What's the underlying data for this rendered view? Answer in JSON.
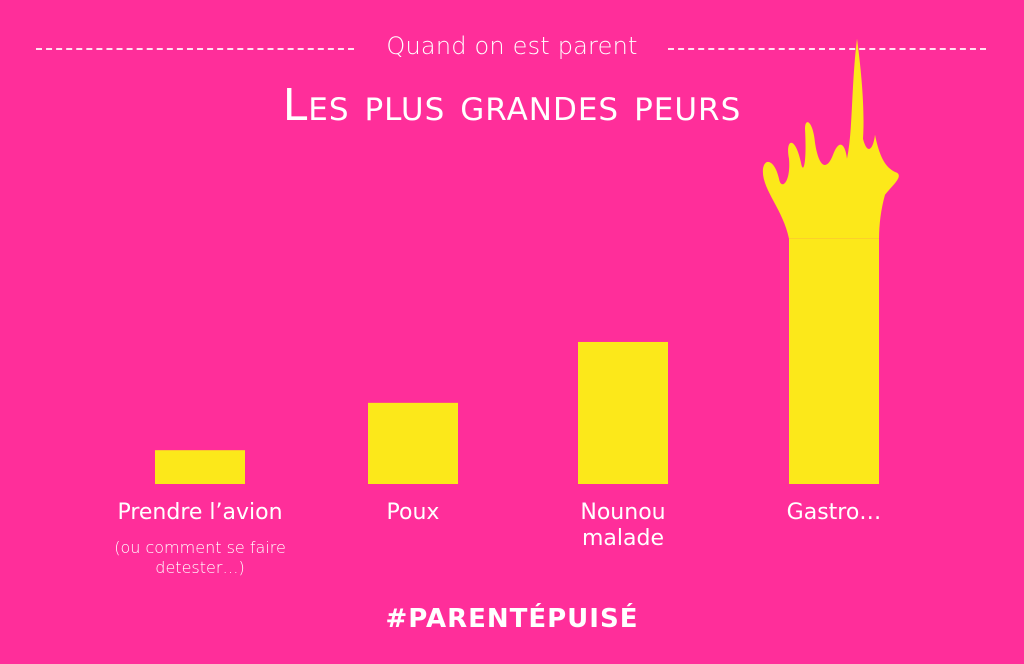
{
  "header": {
    "subtitle": "Quand on est parent",
    "title": "Les plus grandes peurs"
  },
  "chart_data": {
    "type": "bar",
    "title": "Les plus grandes peurs",
    "subtitle": "Quand on est parent",
    "categories": [
      "Prendre l’avion",
      "Poux",
      "Nounou malade",
      "Gastro…"
    ],
    "category_lines": [
      [
        "Prendre l’avion"
      ],
      [
        "Poux"
      ],
      [
        "Nounou",
        "malade"
      ],
      [
        "Gastro…"
      ]
    ],
    "notes": [
      "(ou comment se faire detester…)",
      "",
      "",
      ""
    ],
    "note_lines": [
      [
        "(ou comment se faire",
        "detester…)"
      ],
      [],
      [],
      []
    ],
    "values": [
      1,
      2.4,
      4.2,
      10.8
    ],
    "ylim": [
      0,
      11
    ],
    "xlabel": "",
    "ylabel": "",
    "grid": false,
    "bar_color": "#FCE81A",
    "background_color": "#FF2E9A",
    "text_color": "#FFFFFF"
  },
  "footer": {
    "hashtag": "#PARENTÉPUISÉ"
  }
}
